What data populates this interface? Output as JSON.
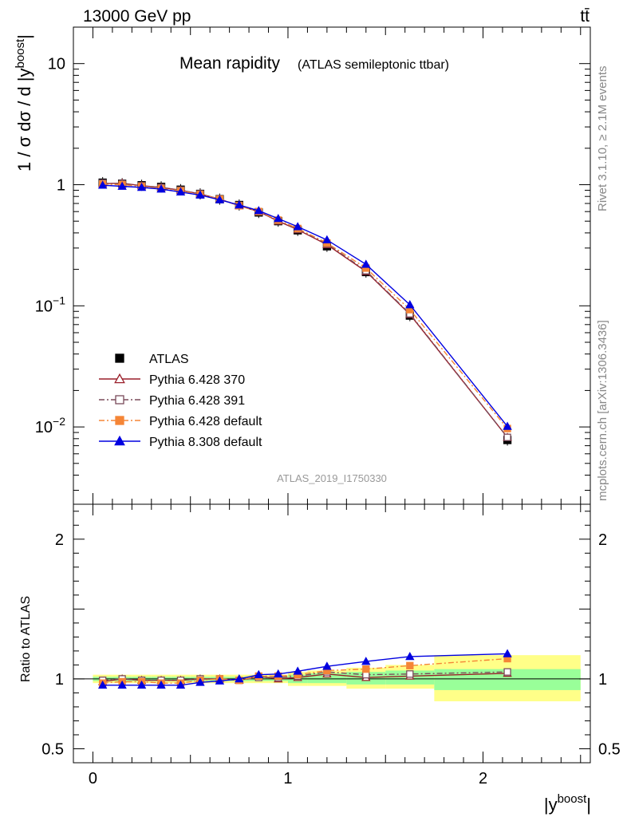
{
  "header": {
    "energy": "13000 GeV pp",
    "process": "tt̄",
    "title": "Mean rapidity",
    "subtitle": "(ATLAS semileptonic ttbar)",
    "analysis": "ATLAS_2019_I1750330",
    "rivet_label": "Rivet 3.1.10, ≥ 2.1M events",
    "mcplots_label": "mcplots.cern.ch [arXiv:1306.3436]"
  },
  "chart_data": [
    {
      "type": "line",
      "panel": "main",
      "xlabel": "|y^boost|",
      "ylabel": "1 / σ dσ / d |y^boost|",
      "yscale": "log",
      "xlim": [
        -0.1,
        2.55
      ],
      "ylim": [
        0.0023,
        20
      ],
      "xticks": [
        {
          "v": 0,
          "label": "0"
        },
        {
          "v": 1,
          "label": "1"
        },
        {
          "v": 2,
          "label": "2"
        }
      ],
      "yticks": [
        {
          "v": 10,
          "label": "10",
          "sup": ""
        },
        {
          "v": 1,
          "label": "1",
          "sup": ""
        },
        {
          "v": 0.1,
          "label": "10",
          "sup": "−1"
        },
        {
          "v": 0.01,
          "label": "10",
          "sup": "−2"
        }
      ],
      "x": [
        0.05,
        0.15,
        0.25,
        0.35,
        0.45,
        0.55,
        0.65,
        0.75,
        0.85,
        0.95,
        1.05,
        1.2,
        1.4,
        1.625,
        2.125
      ],
      "series": [
        {
          "name": "ATLAS",
          "color": "#000000",
          "marker": "square",
          "line": "none",
          "values": [
            1.04,
            1.02,
            0.99,
            0.96,
            0.91,
            0.84,
            0.76,
            0.68,
            0.59,
            0.5,
            0.42,
            0.31,
            0.19,
            0.083,
            0.0078
          ]
        },
        {
          "name": "Pythia 6.428 370",
          "color": "#9a1f2a",
          "marker": "triangle-open",
          "line": "solid",
          "values": [
            1.02,
            1.03,
            0.98,
            0.95,
            0.9,
            0.84,
            0.76,
            0.67,
            0.6,
            0.5,
            0.425,
            0.32,
            0.192,
            0.085,
            0.0082
          ]
        },
        {
          "name": "Pythia 6.428 391",
          "color": "#7a4a5a",
          "marker": "square-open",
          "line": "dashdot",
          "values": [
            1.03,
            1.02,
            0.98,
            0.95,
            0.9,
            0.84,
            0.76,
            0.675,
            0.6,
            0.505,
            0.43,
            0.325,
            0.195,
            0.086,
            0.0082
          ]
        },
        {
          "name": "Pythia 6.428 default",
          "color": "#f58536",
          "marker": "square",
          "line": "dashdot",
          "values": [
            1.01,
            1.0,
            0.97,
            0.93,
            0.89,
            0.83,
            0.76,
            0.67,
            0.6,
            0.51,
            0.435,
            0.33,
            0.205,
            0.093,
            0.0097
          ]
        },
        {
          "name": "Pythia 8.308 default",
          "color": "#0000e0",
          "marker": "triangle",
          "line": "solid",
          "values": [
            0.99,
            0.97,
            0.95,
            0.92,
            0.87,
            0.82,
            0.75,
            0.68,
            0.61,
            0.525,
            0.45,
            0.35,
            0.22,
            0.102,
            0.0101
          ]
        }
      ],
      "legend_position": "lower-left"
    },
    {
      "type": "line",
      "panel": "ratio",
      "xlabel": "|y^boost|",
      "ylabel": "Ratio to ATLAS",
      "xlim": [
        -0.1,
        2.55
      ],
      "ylim": [
        0.4,
        2.25
      ],
      "yticks_left": [
        {
          "v": 2,
          "label": "2"
        },
        {
          "v": 1,
          "label": "1"
        },
        {
          "v": 0.5,
          "label": "0.5"
        }
      ],
      "yticks_right": [
        {
          "v": 2,
          "label": "2"
        },
        {
          "v": 1,
          "label": "1"
        },
        {
          "v": 0.5,
          "label": "0.5"
        }
      ],
      "bins": [
        [
          0.0,
          0.1
        ],
        [
          0.1,
          0.2
        ],
        [
          0.2,
          0.3
        ],
        [
          0.3,
          0.4
        ],
        [
          0.4,
          0.5
        ],
        [
          0.5,
          0.6
        ],
        [
          0.6,
          0.7
        ],
        [
          0.7,
          0.8
        ],
        [
          0.8,
          0.9
        ],
        [
          0.9,
          1.0
        ],
        [
          1.0,
          1.1
        ],
        [
          1.1,
          1.3
        ],
        [
          1.3,
          1.5
        ],
        [
          1.5,
          1.75
        ],
        [
          1.75,
          2.5
        ]
      ],
      "band_inner": [
        [
          0.985,
          1.015
        ],
        [
          0.985,
          1.015
        ],
        [
          0.985,
          1.015
        ],
        [
          0.985,
          1.015
        ],
        [
          0.985,
          1.015
        ],
        [
          0.985,
          1.015
        ],
        [
          0.985,
          1.015
        ],
        [
          0.985,
          1.015
        ],
        [
          0.985,
          1.015
        ],
        [
          0.985,
          1.015
        ],
        [
          0.97,
          1.03
        ],
        [
          0.97,
          1.04
        ],
        [
          0.96,
          1.05
        ],
        [
          0.96,
          1.06
        ],
        [
          0.92,
          1.07
        ]
      ],
      "band_outer": [
        [
          0.97,
          1.03
        ],
        [
          0.97,
          1.03
        ],
        [
          0.97,
          1.03
        ],
        [
          0.97,
          1.03
        ],
        [
          0.97,
          1.03
        ],
        [
          0.97,
          1.03
        ],
        [
          0.97,
          1.03
        ],
        [
          0.97,
          1.03
        ],
        [
          0.97,
          1.03
        ],
        [
          0.97,
          1.03
        ],
        [
          0.95,
          1.05
        ],
        [
          0.95,
          1.06
        ],
        [
          0.93,
          1.08
        ],
        [
          0.93,
          1.1
        ],
        [
          0.84,
          1.17
        ]
      ],
      "x": [
        0.05,
        0.15,
        0.25,
        0.35,
        0.45,
        0.55,
        0.65,
        0.75,
        0.85,
        0.95,
        1.05,
        1.2,
        1.4,
        1.625,
        2.125
      ],
      "series": [
        {
          "name": "Pythia 6.428 370",
          "color": "#9a1f2a",
          "marker": "triangle-open",
          "line": "solid",
          "values": [
            0.98,
            1.0,
            0.99,
            0.99,
            0.99,
            1.0,
            1.0,
            0.99,
            1.02,
            1.0,
            1.01,
            1.035,
            1.01,
            1.02,
            1.04
          ]
        },
        {
          "name": "Pythia 6.428 391",
          "color": "#7a4a5a",
          "marker": "square-open",
          "line": "dashdot",
          "values": [
            0.99,
            1.0,
            0.99,
            0.99,
            0.99,
            1.0,
            1.0,
            0.99,
            1.01,
            1.01,
            1.02,
            1.05,
            1.03,
            1.035,
            1.05
          ]
        },
        {
          "name": "Pythia 6.428 default",
          "color": "#f58536",
          "marker": "square",
          "line": "dashdot",
          "values": [
            0.97,
            0.98,
            0.98,
            0.97,
            0.97,
            0.99,
            1.0,
            0.99,
            1.02,
            1.02,
            1.03,
            1.06,
            1.07,
            1.095,
            1.145
          ]
        },
        {
          "name": "Pythia 8.308 default",
          "color": "#0000e0",
          "marker": "triangle",
          "line": "solid",
          "values": [
            0.955,
            0.955,
            0.955,
            0.955,
            0.955,
            0.975,
            0.985,
            1.0,
            1.03,
            1.035,
            1.055,
            1.09,
            1.125,
            1.16,
            1.18
          ]
        }
      ]
    }
  ]
}
